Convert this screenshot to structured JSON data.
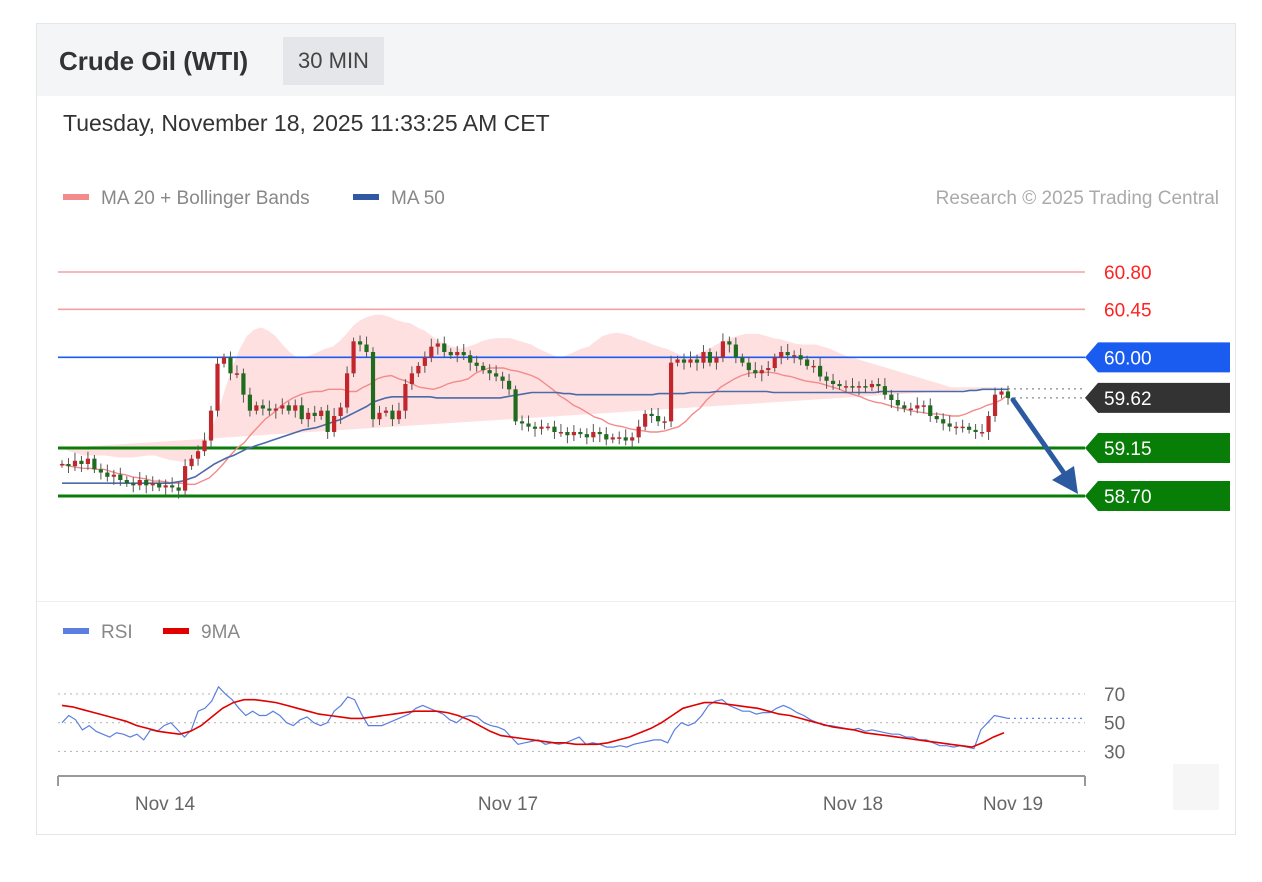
{
  "header": {
    "title": "Crude Oil (WTI)",
    "timeframe": "30 MIN"
  },
  "timestamp": "Tuesday, November 18, 2025 11:33:25 AM CET",
  "legend": {
    "ma20": {
      "label": "MA 20 + Bollinger Bands",
      "color": "#f28b8b"
    },
    "ma50": {
      "label": "MA 50",
      "color": "#2f5aa3"
    },
    "rsi": {
      "label": "RSI",
      "color": "#5b7fe0"
    },
    "rsi_ma": {
      "label": "9MA",
      "color": "#e00000"
    }
  },
  "source": "Research © 2025 Trading Central",
  "chart_data": [
    {
      "type": "candlestick",
      "title": "Crude Oil (WTI)",
      "ylim": [
        57.8,
        61.1
      ],
      "levels": [
        {
          "value": 60.8,
          "label": "60.80",
          "kind": "resistance",
          "color": "#ff2222"
        },
        {
          "value": 60.45,
          "label": "60.45",
          "kind": "resistance",
          "color": "#ff2222"
        },
        {
          "value": 60.0,
          "label": "60.00",
          "kind": "pivot",
          "color": "#1a5cf0"
        },
        {
          "value": 59.62,
          "label": "59.62",
          "kind": "last",
          "color": "#333333"
        },
        {
          "value": 59.15,
          "label": "59.15",
          "kind": "support",
          "color": "#087d08"
        },
        {
          "value": 58.7,
          "label": "58.70",
          "kind": "support",
          "color": "#087d08"
        }
      ],
      "forecast_arrow": {
        "from": 59.62,
        "to": 58.7
      },
      "x_ticks": [
        "Nov 14",
        "Nov 17",
        "Nov 18",
        "Nov 19"
      ],
      "close": [
        59.0,
        58.98,
        59.03,
        59.0,
        59.05,
        58.95,
        58.92,
        58.88,
        58.9,
        58.85,
        58.82,
        58.8,
        58.85,
        58.8,
        58.82,
        58.78,
        58.8,
        58.78,
        58.75,
        58.98,
        59.05,
        59.12,
        59.22,
        59.5,
        59.94,
        60.0,
        59.85,
        59.85,
        59.65,
        59.5,
        59.55,
        59.52,
        59.5,
        59.52,
        59.55,
        59.5,
        59.55,
        59.42,
        59.48,
        59.45,
        59.5,
        59.3,
        59.45,
        59.53,
        59.85,
        60.15,
        60.12,
        60.05,
        59.42,
        59.48,
        59.5,
        59.42,
        59.5,
        59.75,
        59.85,
        59.92,
        60.0,
        60.1,
        60.13,
        60.05,
        60.02,
        60.05,
        60.02,
        59.95,
        59.92,
        59.88,
        59.85,
        59.82,
        59.78,
        59.7,
        59.4,
        59.38,
        59.35,
        59.33,
        59.35,
        59.35,
        59.3,
        59.3,
        59.27,
        59.3,
        59.28,
        59.25,
        59.3,
        59.28,
        59.23,
        59.25,
        59.25,
        59.22,
        59.25,
        59.35,
        59.47,
        59.45,
        59.4,
        59.4,
        59.95,
        59.98,
        59.95,
        59.98,
        59.95,
        60.05,
        59.95,
        60.0,
        60.15,
        60.12,
        60.0,
        59.95,
        59.88,
        59.85,
        59.88,
        59.9,
        60.0,
        60.05,
        60.02,
        60.02,
        59.98,
        59.92,
        59.92,
        59.82,
        59.78,
        59.75,
        59.73,
        59.73,
        59.72,
        59.73,
        59.72,
        59.75,
        59.73,
        59.65,
        59.6,
        59.55,
        59.52,
        59.52,
        59.55,
        59.55,
        59.45,
        59.42,
        59.38,
        59.35,
        59.35,
        59.35,
        59.32,
        59.3,
        59.3,
        59.45,
        59.65,
        59.68,
        59.62
      ],
      "ma20": [
        59.0,
        58.98,
        58.97,
        58.96,
        58.96,
        58.95,
        58.95,
        58.93,
        58.91,
        58.9,
        58.88,
        58.87,
        58.86,
        58.84,
        58.84,
        58.83,
        58.82,
        58.82,
        58.81,
        58.81,
        58.84,
        58.87,
        58.93,
        59.0,
        59.08,
        59.15,
        59.2,
        59.28,
        59.35,
        59.42,
        59.47,
        59.53,
        59.58,
        59.62,
        59.65,
        59.67,
        59.68,
        59.68,
        59.7,
        59.7,
        59.7,
        59.68,
        59.68,
        59.72,
        59.75,
        59.8,
        59.82,
        59.83,
        59.8,
        59.78,
        59.75,
        59.72,
        59.71,
        59.7,
        59.72,
        59.75,
        59.77,
        59.78,
        59.8,
        59.85,
        59.88,
        59.9,
        59.9,
        59.9,
        59.88,
        59.87,
        59.85,
        59.83,
        59.8,
        59.75,
        59.7,
        59.64,
        59.6,
        59.55,
        59.52,
        59.48,
        59.44,
        59.42,
        59.38,
        59.36,
        59.35,
        59.33,
        59.32,
        59.31,
        59.3,
        59.3,
        59.31,
        59.33,
        59.35,
        59.4,
        59.47,
        59.52,
        59.6,
        59.66,
        59.72,
        59.76,
        59.8,
        59.83,
        59.85,
        59.86,
        59.86,
        59.86,
        59.85,
        59.83,
        59.82,
        59.8,
        59.78,
        59.77,
        59.76,
        59.74,
        59.72,
        59.7,
        59.67,
        59.65,
        59.63,
        59.6,
        59.58,
        59.57,
        59.55,
        59.53,
        59.52,
        59.5,
        59.49,
        59.48,
        59.47,
        59.47,
        59.46,
        59.45,
        59.45,
        59.47,
        59.5,
        59.52,
        59.55,
        59.57,
        59.6,
        59.65
      ],
      "ma50": [
        58.82,
        58.82,
        58.82,
        58.82,
        58.82,
        58.82,
        58.82,
        58.82,
        58.82,
        58.82,
        58.82,
        58.82,
        58.82,
        58.82,
        58.82,
        58.82,
        58.82,
        58.82,
        58.83,
        58.84,
        58.86,
        58.88,
        58.92,
        58.96,
        59.0,
        59.03,
        59.06,
        59.08,
        59.11,
        59.14,
        59.16,
        59.18,
        59.2,
        59.22,
        59.24,
        59.26,
        59.28,
        59.3,
        59.32,
        59.33,
        59.34,
        59.36,
        59.38,
        59.4,
        59.42,
        59.45,
        59.48,
        59.51,
        59.54,
        59.58,
        59.6,
        59.62,
        59.63,
        59.63,
        59.63,
        59.63,
        59.63,
        59.63,
        59.63,
        59.62,
        59.62,
        59.62,
        59.62,
        59.62,
        59.62,
        59.62,
        59.62,
        59.62,
        59.62,
        59.62,
        59.63,
        59.64,
        59.65,
        59.66,
        59.67,
        59.67,
        59.67,
        59.67,
        59.67,
        59.66,
        59.66,
        59.65,
        59.65,
        59.65,
        59.65,
        59.65,
        59.65,
        59.65,
        59.65,
        59.65,
        59.65,
        59.65,
        59.65,
        59.65,
        59.66,
        59.66,
        59.66,
        59.66,
        59.66,
        59.67,
        59.67,
        59.67,
        59.67,
        59.68,
        59.68,
        59.68,
        59.68,
        59.68,
        59.68,
        59.68,
        59.68,
        59.68,
        59.67,
        59.67,
        59.67,
        59.67,
        59.67,
        59.67,
        59.67,
        59.67,
        59.67,
        59.67,
        59.67,
        59.67,
        59.67,
        59.67,
        59.67,
        59.67,
        59.67,
        59.68,
        59.68,
        59.68,
        59.68,
        59.68,
        59.68,
        59.68,
        59.68,
        59.68,
        59.68,
        59.68,
        59.68,
        59.68,
        59.68,
        59.69,
        59.69,
        59.7,
        59.7,
        59.7,
        59.7,
        59.7
      ],
      "bb_upper": [
        59.15,
        59.12,
        59.1,
        59.08,
        59.08,
        59.08,
        59.08,
        59.07,
        59.06,
        59.06,
        59.06,
        59.07,
        59.08,
        59.08,
        59.06,
        59.04,
        59.03,
        59.02,
        59.03,
        59.08,
        59.18,
        59.32,
        59.5,
        59.72,
        59.92,
        60.08,
        60.2,
        60.26,
        60.28,
        60.25,
        60.2,
        60.12,
        60.05,
        60.0,
        60.0,
        60.02,
        60.05,
        60.08,
        60.1,
        60.15,
        60.22,
        60.3,
        60.35,
        60.38,
        60.4,
        60.4,
        60.38,
        60.35,
        60.33,
        60.32,
        60.28,
        60.25,
        60.2,
        60.15,
        60.12,
        60.1,
        60.08,
        60.1,
        60.12,
        60.15,
        60.17,
        60.18,
        60.18,
        60.18,
        60.16,
        60.14,
        60.12,
        60.08,
        60.05,
        60.02,
        60.0,
        60.02,
        60.05,
        60.08,
        60.1,
        60.15,
        60.2,
        60.22,
        60.23,
        60.22,
        60.2,
        60.17,
        60.15,
        60.12,
        60.1,
        60.08,
        60.05,
        60.02,
        60.0,
        60.02,
        60.05,
        60.08,
        60.12,
        60.15,
        60.18,
        60.2,
        60.22,
        60.22,
        60.22,
        60.2,
        60.18,
        60.17,
        60.15,
        60.13,
        60.12,
        60.12,
        60.12,
        60.1,
        60.08,
        60.05,
        60.02,
        60.0,
        59.98,
        59.96,
        59.94,
        59.92,
        59.9,
        59.88,
        59.86,
        59.84,
        59.82,
        59.8,
        59.78,
        59.76,
        59.74,
        59.72,
        59.72,
        59.72,
        59.72,
        59.72,
        59.72,
        59.72,
        59.72,
        59.72
      ],
      "bb_lower": [
        58.4,
        58.44,
        58.47,
        58.5,
        58.52,
        58.55,
        58.58,
        58.6,
        58.62,
        58.63,
        58.65,
        58.66,
        58.65,
        58.62,
        58.58,
        58.52,
        58.45,
        58.38,
        58.32,
        58.28,
        58.26,
        58.26,
        58.3,
        58.35,
        58.42,
        58.5,
        58.58,
        58.65,
        58.72,
        58.8,
        58.88,
        58.95,
        59.02,
        59.08,
        59.12,
        59.15,
        59.15,
        59.15,
        59.15,
        59.15,
        59.15,
        59.15,
        59.15,
        59.15,
        59.15,
        59.15,
        59.15,
        59.15,
        59.15,
        59.15,
        59.15,
        59.15,
        59.15,
        59.15,
        59.12,
        59.12,
        59.12,
        59.12,
        59.12,
        59.12,
        59.12,
        59.12,
        59.1,
        59.1,
        59.1,
        59.1,
        59.1,
        59.1,
        59.1,
        59.1,
        59.08,
        59.07,
        59.05,
        59.05,
        59.06,
        59.08,
        59.1,
        59.12,
        59.12,
        59.12,
        59.12,
        59.12,
        59.12,
        59.13,
        59.15,
        59.15,
        59.17,
        59.2,
        59.22,
        59.25,
        59.27,
        59.28,
        59.3,
        59.3,
        59.3,
        59.28,
        59.27,
        59.25,
        59.22,
        59.2,
        59.18,
        59.18,
        59.18,
        59.18,
        59.2,
        59.22,
        59.24,
        59.26,
        59.28,
        59.3,
        59.32,
        59.34,
        59.35,
        59.35,
        59.33,
        59.32,
        59.3,
        59.28,
        59.25,
        59.25,
        59.27,
        59.3,
        59.32,
        59.35
      ]
    },
    {
      "type": "line",
      "title": "RSI",
      "ylim": [
        15,
        95
      ],
      "yticks": [
        70,
        50,
        30
      ],
      "x_ticks": [
        "Nov 14",
        "Nov 17",
        "Nov 18",
        "Nov 19"
      ],
      "series": [
        {
          "name": "RSI",
          "values": [
            50,
            55,
            52,
            45,
            48,
            44,
            42,
            40,
            43,
            42,
            40,
            42,
            38,
            45,
            44,
            48,
            50,
            45,
            40,
            45,
            58,
            60,
            65,
            75,
            70,
            66,
            60,
            55,
            58,
            55,
            55,
            58,
            55,
            50,
            48,
            52,
            54,
            50,
            48,
            50,
            58,
            62,
            68,
            66,
            56,
            48,
            48,
            48,
            50,
            52,
            54,
            56,
            60,
            62,
            60,
            58,
            56,
            52,
            50,
            54,
            55,
            54,
            50,
            48,
            47,
            45,
            40,
            35,
            36,
            37,
            38,
            35,
            36,
            35,
            36,
            38,
            40,
            35,
            36,
            35,
            33,
            33,
            34,
            33,
            35,
            36,
            37,
            38,
            38,
            36,
            45,
            50,
            48,
            50,
            55,
            62,
            65,
            66,
            62,
            60,
            58,
            58,
            56,
            57,
            57,
            60,
            62,
            60,
            57,
            55,
            52,
            50,
            48,
            48,
            47,
            46,
            45,
            46,
            44,
            45,
            44,
            43,
            42,
            42,
            40,
            40,
            38,
            38,
            36,
            34,
            34,
            33,
            34,
            33,
            32,
            45,
            50,
            55,
            54,
            53
          ],
          "color": "#5b7fe0"
        },
        {
          "name": "9MA",
          "values": [
            62,
            61,
            59,
            57,
            55,
            53,
            51,
            48,
            46,
            44,
            43,
            42,
            44,
            48,
            54,
            60,
            64,
            66,
            66,
            65,
            64,
            62,
            60,
            58,
            56,
            55,
            54,
            53,
            53,
            54,
            55,
            56,
            57,
            58,
            58,
            58,
            57,
            55,
            52,
            48,
            44,
            41,
            40,
            39,
            38,
            37,
            36,
            36,
            35,
            35,
            35,
            36,
            38,
            40,
            43,
            46,
            50,
            55,
            60,
            62,
            64,
            64,
            63,
            62,
            61,
            60,
            58,
            56,
            55,
            53,
            51,
            49,
            47,
            46,
            45,
            43,
            42,
            41,
            40,
            39,
            38,
            37,
            36,
            35,
            34,
            33,
            36,
            40,
            43
          ],
          "color": "#e00000"
        }
      ]
    }
  ]
}
